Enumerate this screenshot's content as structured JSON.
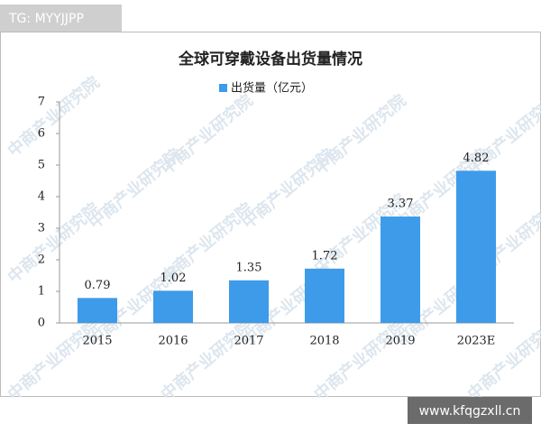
{
  "chart_data": {
    "type": "bar",
    "title": "全球可穿戴设备出货量情况",
    "categories": [
      "2015",
      "2016",
      "2017",
      "2018",
      "2019",
      "2023E"
    ],
    "series": [
      {
        "name": "出货量（亿元）",
        "color": "#3d9be9",
        "values": [
          0.79,
          1.02,
          1.35,
          1.72,
          3.37,
          4.82
        ]
      }
    ],
    "ylim": [
      0,
      7
    ],
    "yticks": [
      0,
      1,
      2,
      3,
      4,
      5,
      6,
      7
    ],
    "grid": false,
    "legend": "top"
  },
  "watermark": "中商产业研究院",
  "overlay": {
    "top_left": "TG: MYYJJPP",
    "bottom_right": "www.kfqgzxll.cn"
  }
}
